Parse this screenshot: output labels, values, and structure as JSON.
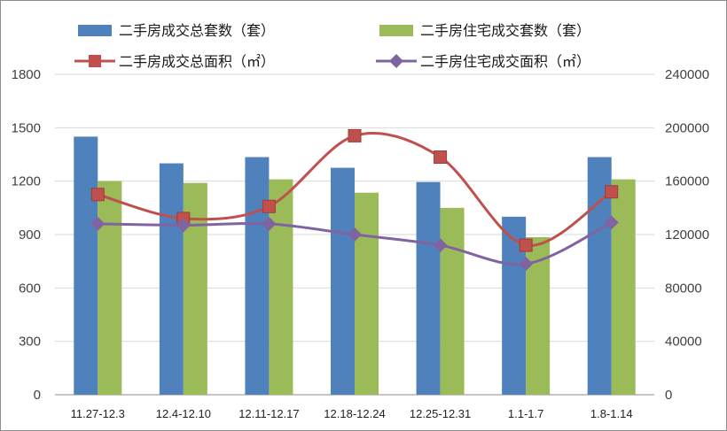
{
  "chart_data": {
    "type": "bar",
    "categories": [
      "11.27-12.3",
      "12.4-12.10",
      "12.11-12.17",
      "12.18-12.24",
      "12.25-12.31",
      "1.1-1.7",
      "1.8-1.14"
    ],
    "left_axis": {
      "ylim": [
        0,
        1800
      ],
      "ticks": [
        "0",
        "300",
        "600",
        "900",
        "1200",
        "1500",
        "1800"
      ]
    },
    "right_axis": {
      "ylim": [
        0,
        240000
      ],
      "ticks": [
        "0",
        "40000",
        "80000",
        "120000",
        "160000",
        "200000",
        "240000"
      ]
    },
    "series": [
      {
        "name": "二手房成交总套数（套）",
        "type": "bar",
        "axis": "left",
        "color": "#4f81bd",
        "values": [
          1450,
          1300,
          1335,
          1275,
          1195,
          1000,
          1335
        ]
      },
      {
        "name": "二手房住宅成交套数（套）",
        "type": "bar",
        "axis": "left",
        "color": "#9bbb59",
        "values": [
          1200,
          1190,
          1210,
          1135,
          1050,
          885,
          1210
        ]
      },
      {
        "name": "二手房成交总面积（㎡）",
        "type": "line",
        "axis": "right",
        "color": "#c0504d",
        "marker": "square",
        "values": [
          150000,
          132000,
          141000,
          194000,
          178000,
          112000,
          152000
        ]
      },
      {
        "name": "二手房住宅成交面积（㎡）",
        "type": "line",
        "axis": "right",
        "color": "#8064a2",
        "marker": "diamond",
        "values": [
          128000,
          127000,
          128000,
          120000,
          112000,
          98000,
          129000
        ]
      }
    ],
    "grid": true,
    "legend_position": "top"
  }
}
